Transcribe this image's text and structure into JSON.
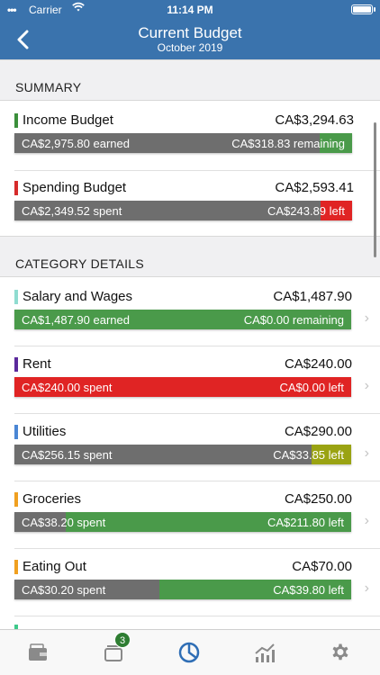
{
  "status_bar": {
    "carrier": "Carrier",
    "time": "11:14 PM"
  },
  "nav": {
    "title": "Current Budget",
    "subtitle": "October 2019"
  },
  "summary": {
    "header": "SUMMARY",
    "items": [
      {
        "name": "Income Budget",
        "amount": "CA$3,294.63",
        "left": "CA$2,975.80 earned",
        "right": "CA$318.83 remaining",
        "marker": "#3b8f3b",
        "fill_color": "#4a9a4a",
        "fraction": 0.903
      },
      {
        "name": "Spending Budget",
        "amount": "CA$2,593.41",
        "left": "CA$2,349.52 spent",
        "right": "CA$243.89 left",
        "marker": "#d62b2b",
        "fill_color": "#e02424",
        "fraction": 0.906
      }
    ]
  },
  "categories": {
    "header": "CATEGORY DETAILS",
    "items": [
      {
        "name": "Salary and Wages",
        "amount": "CA$1,487.90",
        "left": "CA$1,487.90 earned",
        "right": "CA$0.00 remaining",
        "marker": "#8fdcd0",
        "fill_color": "#4a9a4a",
        "fraction": 0.0,
        "full_color": "#4a9a4a"
      },
      {
        "name": "Rent",
        "amount": "CA$240.00",
        "left": "CA$240.00 spent",
        "right": "CA$0.00 left",
        "marker": "#5b2a9c",
        "fill_color": "#e02424",
        "fraction": 0.0,
        "full_color": "#e02424"
      },
      {
        "name": "Utilities",
        "amount": "CA$290.00",
        "left": "CA$256.15 spent",
        "right": "CA$33.85 left",
        "marker": "#4a86d4",
        "fill_color": "#9aa312",
        "fraction": 0.883
      },
      {
        "name": "Groceries",
        "amount": "CA$250.00",
        "left": "CA$38.20 spent",
        "right": "CA$211.80 left",
        "marker": "#f0a020",
        "fill_color": "#4a9a4a",
        "fraction": 0.153
      },
      {
        "name": "Eating Out",
        "amount": "CA$70.00",
        "left": "CA$30.20 spent",
        "right": "CA$39.80 left",
        "marker": "#f0a020",
        "fill_color": "#4a9a4a",
        "fraction": 0.431
      }
    ]
  },
  "tabs": [
    {
      "icon": "wallet-icon",
      "badge": ""
    },
    {
      "icon": "accounts-icon",
      "badge": "3"
    },
    {
      "icon": "pie-chart-icon",
      "badge": "",
      "active": true
    },
    {
      "icon": "trend-chart-icon",
      "badge": ""
    },
    {
      "icon": "gear-icon",
      "badge": ""
    }
  ],
  "colors": {
    "accent": "#3a73ad",
    "tab_active": "#2f6eb5",
    "tab_inactive": "#8a8a8a"
  }
}
